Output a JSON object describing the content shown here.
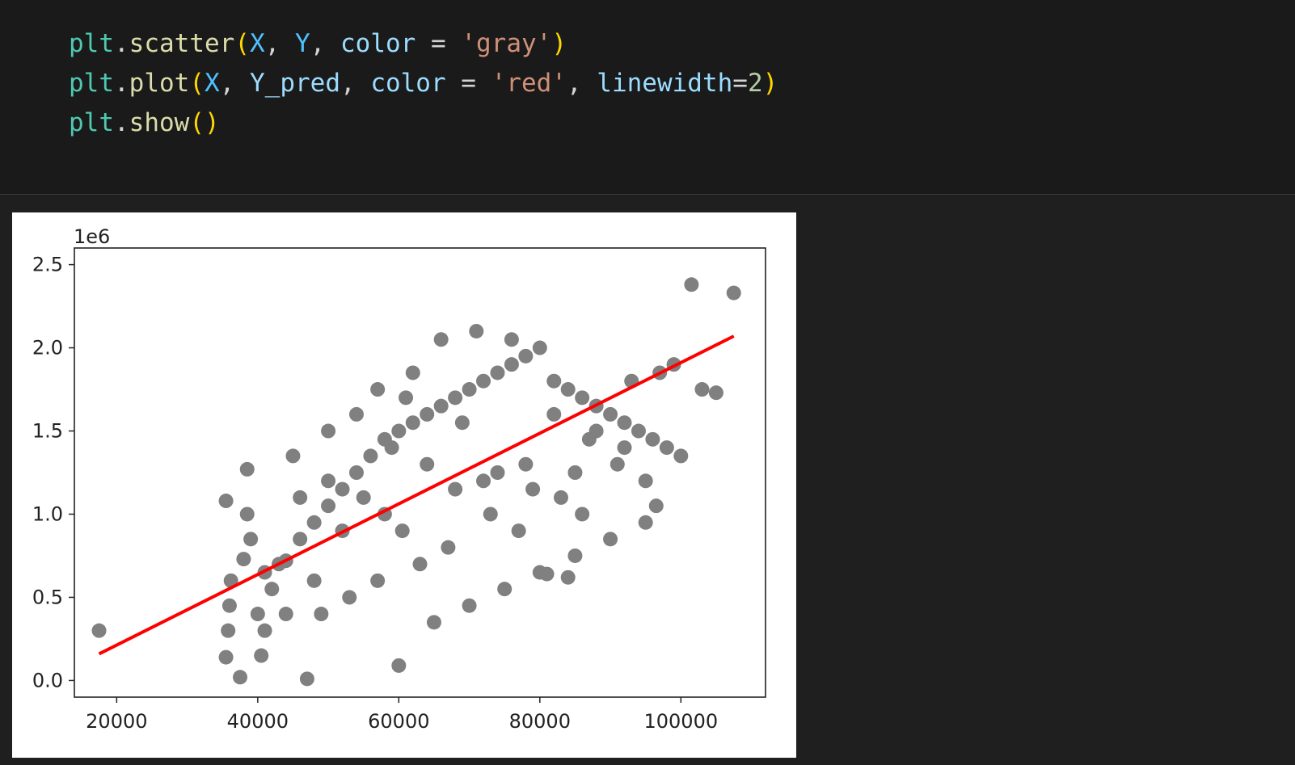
{
  "code": {
    "lines": [
      [
        {
          "t": "plt",
          "c": "fn"
        },
        {
          "t": ".",
          "c": "punc"
        },
        {
          "t": "scatter",
          "c": "meth"
        },
        {
          "t": "(",
          "c": "paren"
        },
        {
          "t": "X",
          "c": "var"
        },
        {
          "t": ", ",
          "c": "punc"
        },
        {
          "t": "Y",
          "c": "var"
        },
        {
          "t": ", ",
          "c": "punc"
        },
        {
          "t": "color",
          "c": "param"
        },
        {
          "t": " = ",
          "c": "punc"
        },
        {
          "t": "'gray'",
          "c": "str"
        },
        {
          "t": ")",
          "c": "paren"
        }
      ],
      [
        {
          "t": "plt",
          "c": "fn"
        },
        {
          "t": ".",
          "c": "punc"
        },
        {
          "t": "plot",
          "c": "meth"
        },
        {
          "t": "(",
          "c": "paren"
        },
        {
          "t": "X",
          "c": "var"
        },
        {
          "t": ", ",
          "c": "punc"
        },
        {
          "t": "Y_pred",
          "c": "param"
        },
        {
          "t": ", ",
          "c": "punc"
        },
        {
          "t": "color",
          "c": "param"
        },
        {
          "t": " = ",
          "c": "punc"
        },
        {
          "t": "'red'",
          "c": "str"
        },
        {
          "t": ", ",
          "c": "punc"
        },
        {
          "t": "linewidth",
          "c": "param"
        },
        {
          "t": "=",
          "c": "punc"
        },
        {
          "t": "2",
          "c": "num"
        },
        {
          "t": ")",
          "c": "paren"
        }
      ],
      [
        {
          "t": "plt",
          "c": "fn"
        },
        {
          "t": ".",
          "c": "punc"
        },
        {
          "t": "show",
          "c": "meth"
        },
        {
          "t": "()",
          "c": "paren"
        }
      ]
    ]
  },
  "chart_data": {
    "type": "scatter",
    "offset_label": "1e6",
    "xlim": [
      14000,
      112000
    ],
    "ylim": [
      -0.1,
      2.6
    ],
    "xticks": [
      20000,
      40000,
      60000,
      80000,
      100000
    ],
    "xtick_labels": [
      "20000",
      "40000",
      "60000",
      "80000",
      "100000"
    ],
    "yticks": [
      0.0,
      0.5,
      1.0,
      1.5,
      2.0,
      2.5
    ],
    "ytick_labels": [
      "0.0",
      "0.5",
      "1.0",
      "1.5",
      "2.0",
      "2.5"
    ],
    "grid": false,
    "series": [
      {
        "kind": "scatter",
        "color": "#808080",
        "x": [
          17500,
          35500,
          35800,
          36000,
          36200,
          37500,
          38000,
          38500,
          39000,
          40000,
          40500,
          41000,
          43000,
          47000,
          38500,
          35500,
          42000,
          44000,
          46000,
          48000,
          50000,
          52000,
          54000,
          56000,
          58000,
          60000,
          62000,
          64000,
          66000,
          68000,
          70000,
          72000,
          74000,
          76000,
          78000,
          80000,
          82000,
          84000,
          86000,
          88000,
          90000,
          92000,
          94000,
          96000,
          98000,
          100000,
          60000,
          65000,
          70000,
          75000,
          80000,
          85000,
          90000,
          95000,
          101500,
          107500,
          103000,
          105000,
          96500,
          84000,
          81000,
          60500,
          58000,
          55000,
          50000,
          45000,
          72000,
          78000,
          88000,
          92000,
          67000,
          63000,
          57000,
          53000,
          49000,
          61000,
          69000,
          74000,
          83000,
          86000,
          93000,
          97000,
          99000,
          52000,
          48000,
          44000,
          41000,
          46000,
          50000,
          54000,
          59000,
          64000,
          68000,
          73000,
          77000,
          82000,
          87000,
          91000,
          95000,
          66000,
          71000,
          76000,
          62000,
          57000,
          79000,
          85000
        ],
        "y": [
          0.3,
          0.14,
          0.3,
          0.45,
          0.6,
          0.02,
          0.73,
          1.27,
          0.85,
          0.4,
          0.15,
          0.65,
          0.7,
          0.01,
          1.0,
          1.08,
          0.55,
          0.72,
          0.85,
          0.95,
          1.05,
          1.15,
          1.25,
          1.35,
          1.45,
          1.5,
          1.55,
          1.6,
          1.65,
          1.7,
          1.75,
          1.8,
          1.85,
          1.9,
          1.95,
          2.0,
          1.8,
          1.75,
          1.7,
          1.65,
          1.6,
          1.55,
          1.5,
          1.45,
          1.4,
          1.35,
          0.09,
          0.35,
          0.45,
          0.55,
          0.65,
          0.75,
          0.85,
          0.95,
          2.38,
          2.33,
          1.75,
          1.73,
          1.05,
          0.62,
          0.64,
          0.9,
          1.0,
          1.1,
          1.2,
          1.35,
          1.2,
          1.3,
          1.5,
          1.4,
          0.8,
          0.7,
          0.6,
          0.5,
          0.4,
          1.7,
          1.55,
          1.25,
          1.1,
          1.0,
          1.8,
          1.85,
          1.9,
          0.9,
          0.6,
          0.4,
          0.3,
          1.1,
          1.5,
          1.6,
          1.4,
          1.3,
          1.15,
          1.0,
          0.9,
          1.6,
          1.45,
          1.3,
          1.2,
          2.05,
          2.1,
          2.05,
          1.85,
          1.75,
          1.15,
          1.25
        ]
      },
      {
        "kind": "line",
        "color": "#ff0000",
        "x": [
          17500,
          107500
        ],
        "y": [
          0.16,
          2.07
        ]
      }
    ]
  }
}
